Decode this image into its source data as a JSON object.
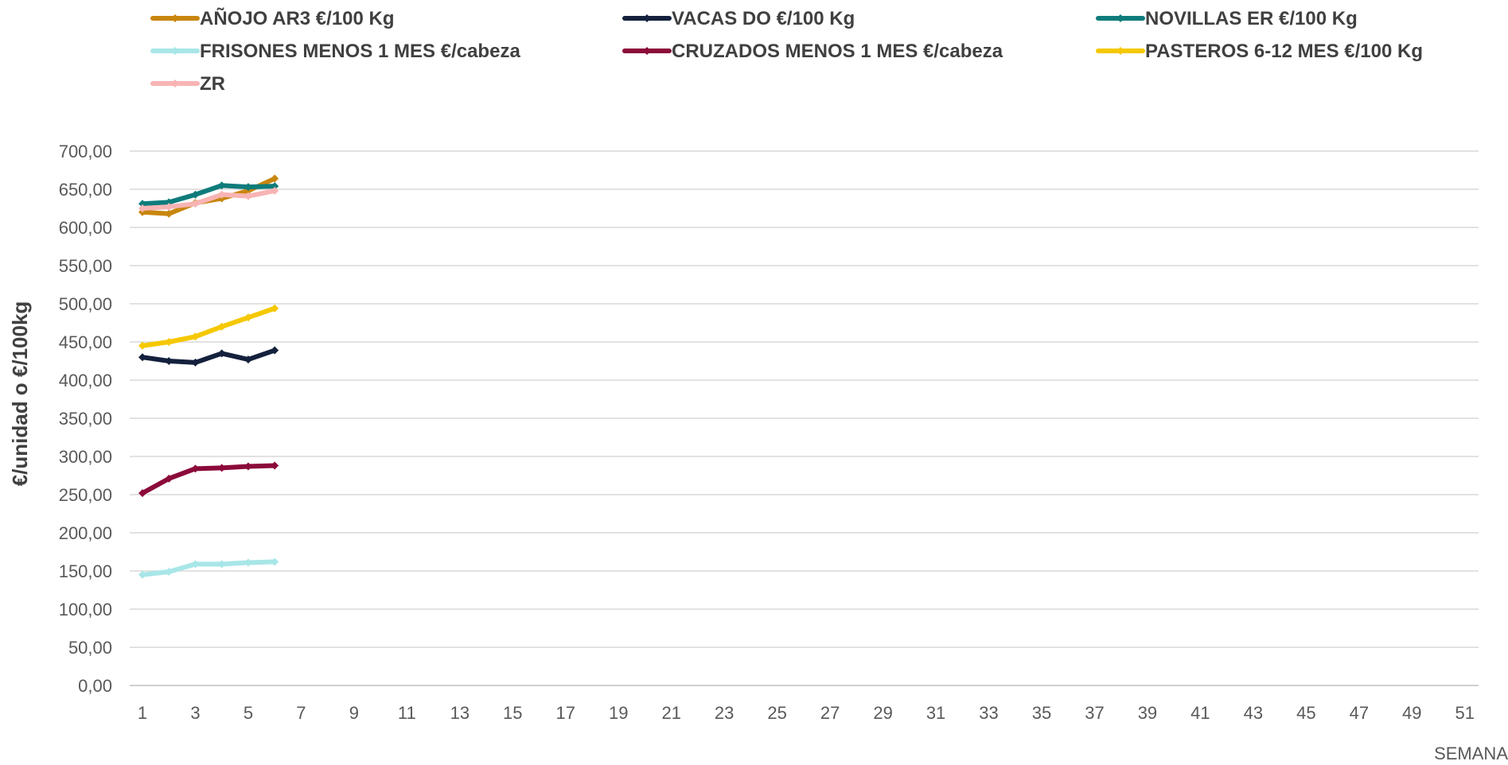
{
  "chart_data": {
    "type": "line",
    "title": "",
    "xlabel": "SEMANA",
    "ylabel": "€/unidad o €/100kg",
    "ylim": [
      0,
      700
    ],
    "y_ticks": [
      0,
      50,
      100,
      150,
      200,
      250,
      300,
      350,
      400,
      450,
      500,
      550,
      600,
      650,
      700
    ],
    "y_tick_labels": [
      "0,00",
      "50,00",
      "100,00",
      "150,00",
      "200,00",
      "250,00",
      "300,00",
      "350,00",
      "400,00",
      "450,00",
      "500,00",
      "550,00",
      "600,00",
      "650,00",
      "700,00"
    ],
    "xlim": [
      1,
      52
    ],
    "x_ticks": [
      1,
      3,
      5,
      7,
      9,
      11,
      13,
      15,
      17,
      19,
      21,
      23,
      25,
      27,
      29,
      31,
      33,
      35,
      37,
      39,
      41,
      43,
      45,
      47,
      49,
      51
    ],
    "x_tick_labels": [
      "1",
      "3",
      "5",
      "7",
      "9",
      "11",
      "13",
      "15",
      "17",
      "19",
      "21",
      "23",
      "25",
      "27",
      "29",
      "31",
      "33",
      "35",
      "37",
      "39",
      "41",
      "43",
      "45",
      "47",
      "49",
      "51"
    ],
    "grid": "horizontal",
    "legend_position": "top",
    "x": [
      1,
      2,
      3,
      4,
      5,
      6
    ],
    "series": [
      {
        "name": "AÑOJO AR3 €/100 Kg",
        "color": "#C8860D",
        "values": [
          620,
          618,
          632,
          638,
          648,
          664
        ]
      },
      {
        "name": "VACAS DO €/100 Kg",
        "color": "#14213D",
        "values": [
          430,
          425,
          423,
          435,
          427,
          439
        ]
      },
      {
        "name": "NOVILLAS ER €/100 Kg",
        "color": "#0E7C7B",
        "values": [
          631,
          633,
          643,
          655,
          653,
          654
        ]
      },
      {
        "name": "FRISONES MENOS 1 MES €/cabeza",
        "color": "#A8E6E8",
        "values": [
          145,
          149,
          159,
          159,
          161,
          162
        ]
      },
      {
        "name": "CRUZADOS MENOS 1 MES €/cabeza",
        "color": "#8B0A3A",
        "values": [
          252,
          271,
          284,
          285,
          287,
          288
        ]
      },
      {
        "name": "PASTEROS 6-12 MES €/100 Kg",
        "color": "#F5C800",
        "values": [
          445,
          450,
          457,
          470,
          482,
          494
        ]
      },
      {
        "name": "ZR",
        "color": "#F8B4B4",
        "values": [
          625,
          627,
          631,
          643,
          641,
          648
        ]
      }
    ]
  }
}
